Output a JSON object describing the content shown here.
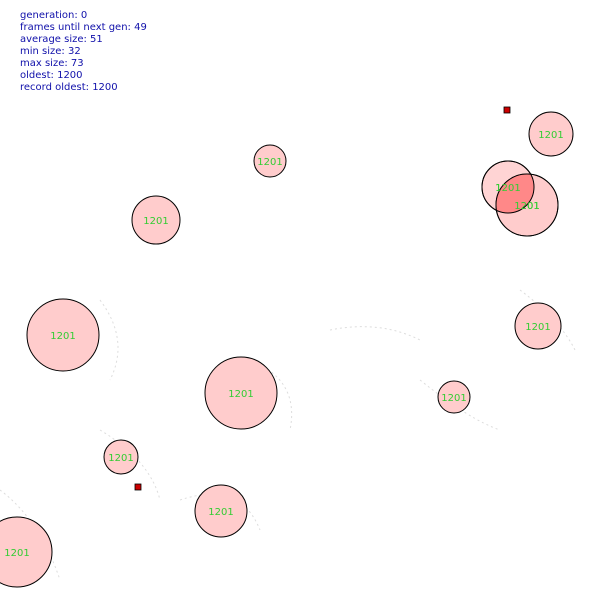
{
  "hud": {
    "generation": "generation: 0",
    "frames_until_next_gen": "frames until next gen: 49",
    "average_size": "average size: 51",
    "min_size": "min size: 32",
    "max_size": "max size: 73",
    "oldest": "oldest: 1200",
    "record_oldest": "record oldest: 1200"
  },
  "colors": {
    "creature_fill": "#ffcccc",
    "creature_overlap_fill": "#ff8888",
    "creature_stroke": "#000000",
    "label_color": "#33cc33",
    "food_fill": "#cc0000",
    "hud_text": "#1010aa",
    "trail": "#dddddd"
  },
  "creatures": [
    {
      "age_label": "1201",
      "tint": "normal"
    },
    {
      "age_label": "1201",
      "tint": "normal"
    },
    {
      "age_label": "1201",
      "tint": "overlap"
    },
    {
      "age_label": "1201",
      "tint": "normal"
    },
    {
      "age_label": "1201",
      "tint": "normal"
    },
    {
      "age_label": "1201",
      "tint": "normal"
    },
    {
      "age_label": "1201",
      "tint": "normal"
    },
    {
      "age_label": "1201",
      "tint": "normal"
    },
    {
      "age_label": "1201",
      "tint": "normal"
    },
    {
      "age_label": "1201",
      "tint": "normal"
    },
    {
      "age_label": "1201",
      "tint": "normal"
    },
    {
      "age_label": "1201",
      "tint": "normal"
    },
    {
      "age_label": "1201",
      "tint": "edge"
    }
  ],
  "food_items": [
    {
      "kind": "food"
    },
    {
      "kind": "food"
    }
  ]
}
